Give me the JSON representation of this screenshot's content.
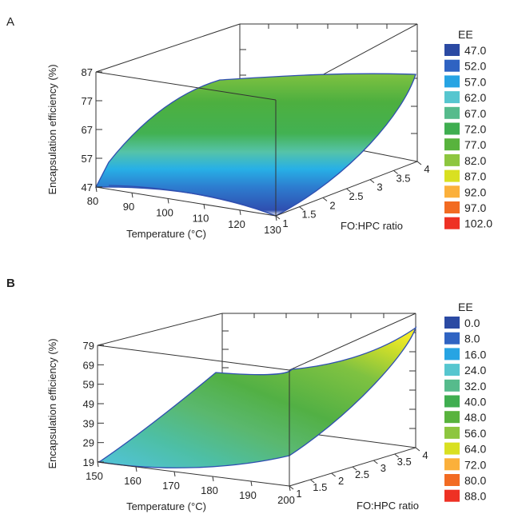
{
  "chart_data": [
    {
      "panel_label": "A",
      "type": "surface3d",
      "xlabel": "Temperature (°C)",
      "ylabel": "FO:HPC ratio",
      "zlabel": "Encapsulation efficiency (%)",
      "x_ticks": [
        "80",
        "90",
        "100",
        "110",
        "120",
        "130"
      ],
      "y_ticks": [
        "1",
        "1.5",
        "2",
        "2.5",
        "3",
        "3.5",
        "4"
      ],
      "z_ticks": [
        "47",
        "57",
        "67",
        "77",
        "87"
      ],
      "xlim": [
        80,
        130
      ],
      "ylim": [
        1,
        4
      ],
      "zlim": [
        47,
        87
      ],
      "surface_corners": {
        "x80_y1": 47,
        "x130_y1": 47,
        "x80_y4": 87,
        "x130_y4": 87
      },
      "legend": {
        "title": "EE",
        "entries": [
          {
            "label": "47.0",
            "color": "#2b4aa3"
          },
          {
            "label": "52.0",
            "color": "#2f63c2"
          },
          {
            "label": "57.0",
            "color": "#27a4e3"
          },
          {
            "label": "62.0",
            "color": "#56c6cf"
          },
          {
            "label": "67.0",
            "color": "#56bb8c"
          },
          {
            "label": "72.0",
            "color": "#3fae50"
          },
          {
            "label": "77.0",
            "color": "#58b33d"
          },
          {
            "label": "82.0",
            "color": "#8dc63f"
          },
          {
            "label": "87.0",
            "color": "#d9e021"
          },
          {
            "label": "92.0",
            "color": "#fbb03b"
          },
          {
            "label": "97.0",
            "color": "#f26b22"
          },
          {
            "label": "102.0",
            "color": "#ee3124"
          }
        ]
      }
    },
    {
      "panel_label": "B",
      "type": "surface3d",
      "xlabel": "Temperature (°C)",
      "ylabel": "FO:HPC ratio",
      "zlabel": "Encapsulation efficiency (%)",
      "x_ticks": [
        "150",
        "160",
        "170",
        "180",
        "190",
        "200"
      ],
      "y_ticks": [
        "1",
        "1.5",
        "2",
        "2.5",
        "3",
        "3.5",
        "4"
      ],
      "z_ticks": [
        "19",
        "29",
        "39",
        "49",
        "59",
        "69",
        "79"
      ],
      "xlim": [
        150,
        200
      ],
      "ylim": [
        1,
        4
      ],
      "zlim": [
        19,
        79
      ],
      "surface_corners": {
        "x150_y1": 22,
        "x200_y1": 29,
        "x150_y4": 60,
        "x200_y4": 79
      },
      "legend": {
        "title": "EE",
        "entries": [
          {
            "label": "0.0",
            "color": "#2b4aa3"
          },
          {
            "label": "8.0",
            "color": "#2f63c2"
          },
          {
            "label": "16.0",
            "color": "#27a4e3"
          },
          {
            "label": "24.0",
            "color": "#56c6cf"
          },
          {
            "label": "32.0",
            "color": "#56bb8c"
          },
          {
            "label": "40.0",
            "color": "#3fae50"
          },
          {
            "label": "48.0",
            "color": "#58b33d"
          },
          {
            "label": "56.0",
            "color": "#8dc63f"
          },
          {
            "label": "64.0",
            "color": "#d9e021"
          },
          {
            "label": "72.0",
            "color": "#fbb03b"
          },
          {
            "label": "80.0",
            "color": "#f26b22"
          },
          {
            "label": "88.0",
            "color": "#ee3124"
          }
        ]
      }
    }
  ]
}
